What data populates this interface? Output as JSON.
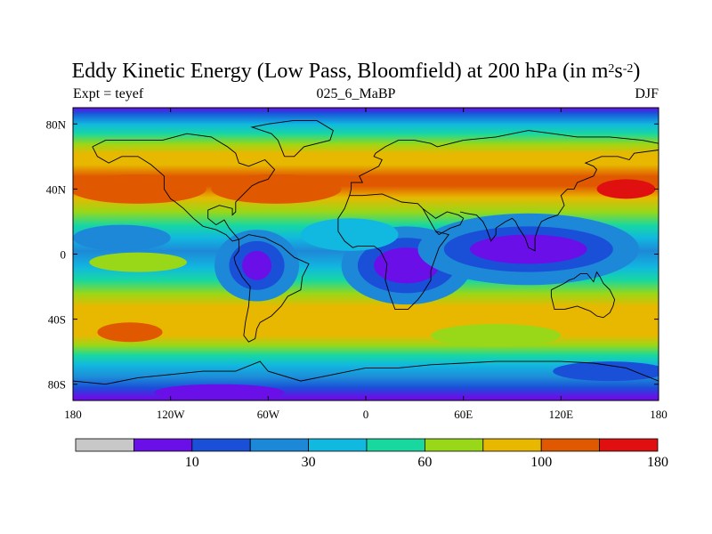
{
  "chart_data": {
    "type": "heatmap",
    "title_main": "Eddy Kinetic Energy (Low Pass, Bloomfield) at 200 hPa (in m",
    "title_units_m_exp": "2",
    "title_units_s": "s",
    "title_units_s_exp": "-2",
    "title_close": ")",
    "subtitle_left": "Expt = teyef",
    "subtitle_center": "025_6_MaBP",
    "subtitle_right": "DJF",
    "x_ticks": [
      {
        "value": -180,
        "label": "180"
      },
      {
        "value": -120,
        "label": "120W"
      },
      {
        "value": -60,
        "label": "60W"
      },
      {
        "value": 0,
        "label": "0"
      },
      {
        "value": 60,
        "label": "60E"
      },
      {
        "value": 120,
        "label": "120E"
      },
      {
        "value": 180,
        "label": "180"
      }
    ],
    "y_ticks": [
      {
        "value": 80,
        "label": "80N"
      },
      {
        "value": 40,
        "label": "40N"
      },
      {
        "value": 0,
        "label": "0"
      },
      {
        "value": -40,
        "label": "40S"
      },
      {
        "value": -80,
        "label": "80S"
      }
    ],
    "xlim": [
      -180,
      180
    ],
    "ylim": [
      -90,
      90
    ],
    "colorbar": {
      "colors": [
        "#c8c8c8",
        "#6a0fe8",
        "#1a4fd8",
        "#1e88d8",
        "#11b8e0",
        "#18d8a0",
        "#98d818",
        "#e8b800",
        "#e05800",
        "#e01010"
      ],
      "tick_labels": [
        {
          "index": 2,
          "label": "10"
        },
        {
          "index": 4,
          "label": "30"
        },
        {
          "index": 6,
          "label": "60"
        },
        {
          "index": 8,
          "label": "100"
        },
        {
          "index": 10,
          "label": "180"
        }
      ]
    },
    "levels": [
      {
        "lat": 90,
        "lev": 1
      },
      {
        "lat": 87,
        "lev": 2
      },
      {
        "lat": 80,
        "lev": 4
      },
      {
        "lat": 74,
        "lev": 5
      },
      {
        "lat": 68,
        "lev": 6
      },
      {
        "lat": 62,
        "lev": 7
      },
      {
        "lat": 55,
        "lev": 7
      },
      {
        "lat": 48,
        "lev": 8
      },
      {
        "lat": 42,
        "lev": 8
      },
      {
        "lat": 35,
        "lev": 7
      },
      {
        "lat": 26,
        "lev": 6
      },
      {
        "lat": 18,
        "lev": 5
      },
      {
        "lat": 10,
        "lev": 4
      },
      {
        "lat": 2,
        "lev": 3
      },
      {
        "lat": -8,
        "lev": 4
      },
      {
        "lat": -16,
        "lev": 5
      },
      {
        "lat": -24,
        "lev": 6
      },
      {
        "lat": -32,
        "lev": 7
      },
      {
        "lat": -42,
        "lev": 7
      },
      {
        "lat": -50,
        "lev": 7
      },
      {
        "lat": -56,
        "lev": 6
      },
      {
        "lat": -62,
        "lev": 5
      },
      {
        "lat": -68,
        "lev": 4
      },
      {
        "lat": -76,
        "lev": 3
      },
      {
        "lat": -82,
        "lev": 2
      },
      {
        "lat": -88,
        "lev": 1
      },
      {
        "lat": -90,
        "lev": 1
      }
    ],
    "features": [
      {
        "lon": -140,
        "lat": 40,
        "rx": 42,
        "ry": 9,
        "lev": 8
      },
      {
        "lon": -55,
        "lat": 40,
        "rx": 40,
        "ry": 9,
        "lev": 8
      },
      {
        "lon": 160,
        "lat": 40,
        "rx": 18,
        "ry": 6,
        "lev": 9
      },
      {
        "lon": -150,
        "lat": 10,
        "rx": 30,
        "ry": 8,
        "lev": 3
      },
      {
        "lon": -140,
        "lat": -5,
        "rx": 30,
        "ry": 6,
        "lev": 6
      },
      {
        "lon": -67,
        "lat": -7,
        "rx": 26,
        "ry": 22,
        "lev": 3
      },
      {
        "lon": -67,
        "lat": -7,
        "rx": 17,
        "ry": 15,
        "lev": 2
      },
      {
        "lon": -67,
        "lat": -7,
        "rx": 9,
        "ry": 9,
        "lev": 1
      },
      {
        "lon": 25,
        "lat": -7,
        "rx": 40,
        "ry": 24,
        "lev": 3
      },
      {
        "lon": 25,
        "lat": -7,
        "rx": 30,
        "ry": 17,
        "lev": 2
      },
      {
        "lon": 25,
        "lat": -7,
        "rx": 20,
        "ry": 11,
        "lev": 1
      },
      {
        "lon": 100,
        "lat": 3,
        "rx": 68,
        "ry": 22,
        "lev": 3
      },
      {
        "lon": 100,
        "lat": 3,
        "rx": 52,
        "ry": 14,
        "lev": 2
      },
      {
        "lon": 100,
        "lat": 3,
        "rx": 36,
        "ry": 9,
        "lev": 1
      },
      {
        "lon": -10,
        "lat": 12,
        "rx": 30,
        "ry": 10,
        "lev": 4
      },
      {
        "lon": -145,
        "lat": -48,
        "rx": 20,
        "ry": 6,
        "lev": 8
      },
      {
        "lon": 80,
        "lat": -50,
        "rx": 40,
        "ry": 7,
        "lev": 6
      },
      {
        "lon": 150,
        "lat": -72,
        "rx": 35,
        "ry": 6,
        "lev": 2
      },
      {
        "lon": -90,
        "lat": -85,
        "rx": 40,
        "ry": 5,
        "lev": 1
      }
    ],
    "coastlines": [
      [
        [
          -168,
          66
        ],
        [
          -160,
          70
        ],
        [
          -140,
          70
        ],
        [
          -125,
          70
        ],
        [
          -110,
          74
        ],
        [
          -95,
          72
        ],
        [
          -85,
          66
        ],
        [
          -80,
          62
        ],
        [
          -78,
          56
        ],
        [
          -72,
          54
        ],
        [
          -62,
          58
        ],
        [
          -56,
          52
        ],
        [
          -60,
          46
        ],
        [
          -66,
          44
        ],
        [
          -70,
          42
        ],
        [
          -76,
          36
        ],
        [
          -80,
          32
        ],
        [
          -80,
          26
        ],
        [
          -82,
          24
        ],
        [
          -82,
          28
        ],
        [
          -90,
          30
        ],
        [
          -97,
          27
        ],
        [
          -97,
          22
        ],
        [
          -92,
          18
        ],
        [
          -87,
          21
        ],
        [
          -84,
          16
        ],
        [
          -78,
          9
        ],
        [
          -82,
          8
        ],
        [
          -86,
          12
        ],
        [
          -92,
          15
        ],
        [
          -100,
          17
        ],
        [
          -106,
          22
        ],
        [
          -112,
          28
        ],
        [
          -117,
          32
        ],
        [
          -120,
          34
        ],
        [
          -124,
          40
        ],
        [
          -124,
          48
        ],
        [
          -132,
          55
        ],
        [
          -140,
          60
        ],
        [
          -150,
          60
        ],
        [
          -158,
          56
        ],
        [
          -165,
          60
        ],
        [
          -168,
          66
        ]
      ],
      [
        [
          -78,
          9
        ],
        [
          -72,
          12
        ],
        [
          -62,
          10
        ],
        [
          -52,
          5
        ],
        [
          -44,
          -2
        ],
        [
          -35,
          -6
        ],
        [
          -39,
          -14
        ],
        [
          -40,
          -22
        ],
        [
          -48,
          -26
        ],
        [
          -52,
          -32
        ],
        [
          -58,
          -38
        ],
        [
          -65,
          -42
        ],
        [
          -67,
          -46
        ],
        [
          -68,
          -52
        ],
        [
          -72,
          -54
        ],
        [
          -75,
          -50
        ],
        [
          -74,
          -42
        ],
        [
          -72,
          -32
        ],
        [
          -71,
          -20
        ],
        [
          -76,
          -14
        ],
        [
          -80,
          -6
        ],
        [
          -81,
          -2
        ],
        [
          -78,
          2
        ],
        [
          -78,
          9
        ]
      ],
      [
        [
          -50,
          60
        ],
        [
          -44,
          60
        ],
        [
          -38,
          66
        ],
        [
          -22,
          70
        ],
        [
          -20,
          76
        ],
        [
          -30,
          82
        ],
        [
          -45,
          82
        ],
        [
          -60,
          80
        ],
        [
          -70,
          78
        ],
        [
          -58,
          74
        ],
        [
          -54,
          70
        ],
        [
          -50,
          60
        ]
      ],
      [
        [
          -10,
          36
        ],
        [
          -9,
          40
        ],
        [
          -9,
          44
        ],
        [
          -2,
          44
        ],
        [
          -4,
          48
        ],
        [
          4,
          52
        ],
        [
          8,
          54
        ],
        [
          10,
          58
        ],
        [
          5,
          60
        ],
        [
          6,
          62
        ],
        [
          12,
          66
        ],
        [
          20,
          70
        ],
        [
          30,
          70
        ],
        [
          40,
          68
        ],
        [
          44,
          66
        ],
        [
          60,
          70
        ],
        [
          80,
          72
        ],
        [
          100,
          76
        ],
        [
          115,
          74
        ],
        [
          130,
          72
        ],
        [
          150,
          72
        ],
        [
          170,
          70
        ],
        [
          180,
          68
        ]
      ],
      [
        [
          -10,
          36
        ],
        [
          -6,
          36
        ],
        [
          -2,
          36
        ],
        [
          10,
          37
        ],
        [
          22,
          32
        ],
        [
          32,
          31
        ],
        [
          35,
          28
        ],
        [
          43,
          14
        ],
        [
          51,
          12
        ],
        [
          45,
          4
        ],
        [
          40,
          -10
        ],
        [
          40,
          -16
        ],
        [
          35,
          -24
        ],
        [
          32,
          -28
        ],
        [
          26,
          -34
        ],
        [
          18,
          -34
        ],
        [
          15,
          -26
        ],
        [
          12,
          -16
        ],
        [
          13,
          -6
        ],
        [
          9,
          2
        ],
        [
          5,
          5
        ],
        [
          -5,
          5
        ],
        [
          -8,
          4
        ],
        [
          -13,
          8
        ],
        [
          -17,
          14
        ],
        [
          -17,
          22
        ],
        [
          -13,
          28
        ],
        [
          -10,
          36
        ]
      ],
      [
        [
          35,
          28
        ],
        [
          43,
          22
        ],
        [
          50,
          26
        ],
        [
          57,
          24
        ],
        [
          60,
          22
        ],
        [
          58,
          18
        ],
        [
          52,
          16
        ],
        [
          45,
          12
        ],
        [
          43,
          14
        ]
      ],
      [
        [
          58,
          26
        ],
        [
          62,
          25
        ],
        [
          68,
          24
        ],
        [
          72,
          20
        ],
        [
          74,
          16
        ],
        [
          77,
          8
        ],
        [
          80,
          12
        ],
        [
          80,
          16
        ],
        [
          86,
          20
        ],
        [
          90,
          22
        ],
        [
          92,
          20
        ],
        [
          94,
          16
        ],
        [
          98,
          10
        ],
        [
          100,
          4
        ],
        [
          104,
          2
        ],
        [
          104,
          10
        ],
        [
          106,
          16
        ],
        [
          108,
          20
        ],
        [
          112,
          22
        ],
        [
          118,
          24
        ],
        [
          122,
          30
        ],
        [
          120,
          36
        ],
        [
          124,
          40
        ],
        [
          128,
          40
        ],
        [
          130,
          44
        ],
        [
          140,
          48
        ],
        [
          142,
          52
        ],
        [
          140,
          54
        ],
        [
          135,
          56
        ],
        [
          145,
          60
        ],
        [
          155,
          60
        ],
        [
          162,
          58
        ],
        [
          165,
          62
        ],
        [
          180,
          64
        ]
      ],
      [
        [
          114,
          -22
        ],
        [
          114,
          -26
        ],
        [
          116,
          -34
        ],
        [
          122,
          -34
        ],
        [
          130,
          -32
        ],
        [
          135,
          -34
        ],
        [
          138,
          -35
        ],
        [
          142,
          -38
        ],
        [
          146,
          -39
        ],
        [
          150,
          -36
        ],
        [
          152,
          -32
        ],
        [
          153,
          -28
        ],
        [
          150,
          -22
        ],
        [
          146,
          -18
        ],
        [
          144,
          -14
        ],
        [
          142,
          -11
        ],
        [
          140,
          -17
        ],
        [
          136,
          -12
        ],
        [
          132,
          -12
        ],
        [
          128,
          -15
        ],
        [
          125,
          -16
        ],
        [
          122,
          -18
        ],
        [
          114,
          -22
        ]
      ],
      [
        [
          -180,
          -78
        ],
        [
          -160,
          -80
        ],
        [
          -140,
          -76
        ],
        [
          -120,
          -74
        ],
        [
          -100,
          -72
        ],
        [
          -80,
          -72
        ],
        [
          -65,
          -66
        ],
        [
          -60,
          -72
        ],
        [
          -40,
          -78
        ],
        [
          -20,
          -74
        ],
        [
          0,
          -70
        ],
        [
          20,
          -70
        ],
        [
          40,
          -68
        ],
        [
          60,
          -67
        ],
        [
          80,
          -66
        ],
        [
          100,
          -66
        ],
        [
          120,
          -66
        ],
        [
          140,
          -67
        ],
        [
          160,
          -70
        ],
        [
          170,
          -74
        ],
        [
          180,
          -78
        ]
      ]
    ]
  }
}
